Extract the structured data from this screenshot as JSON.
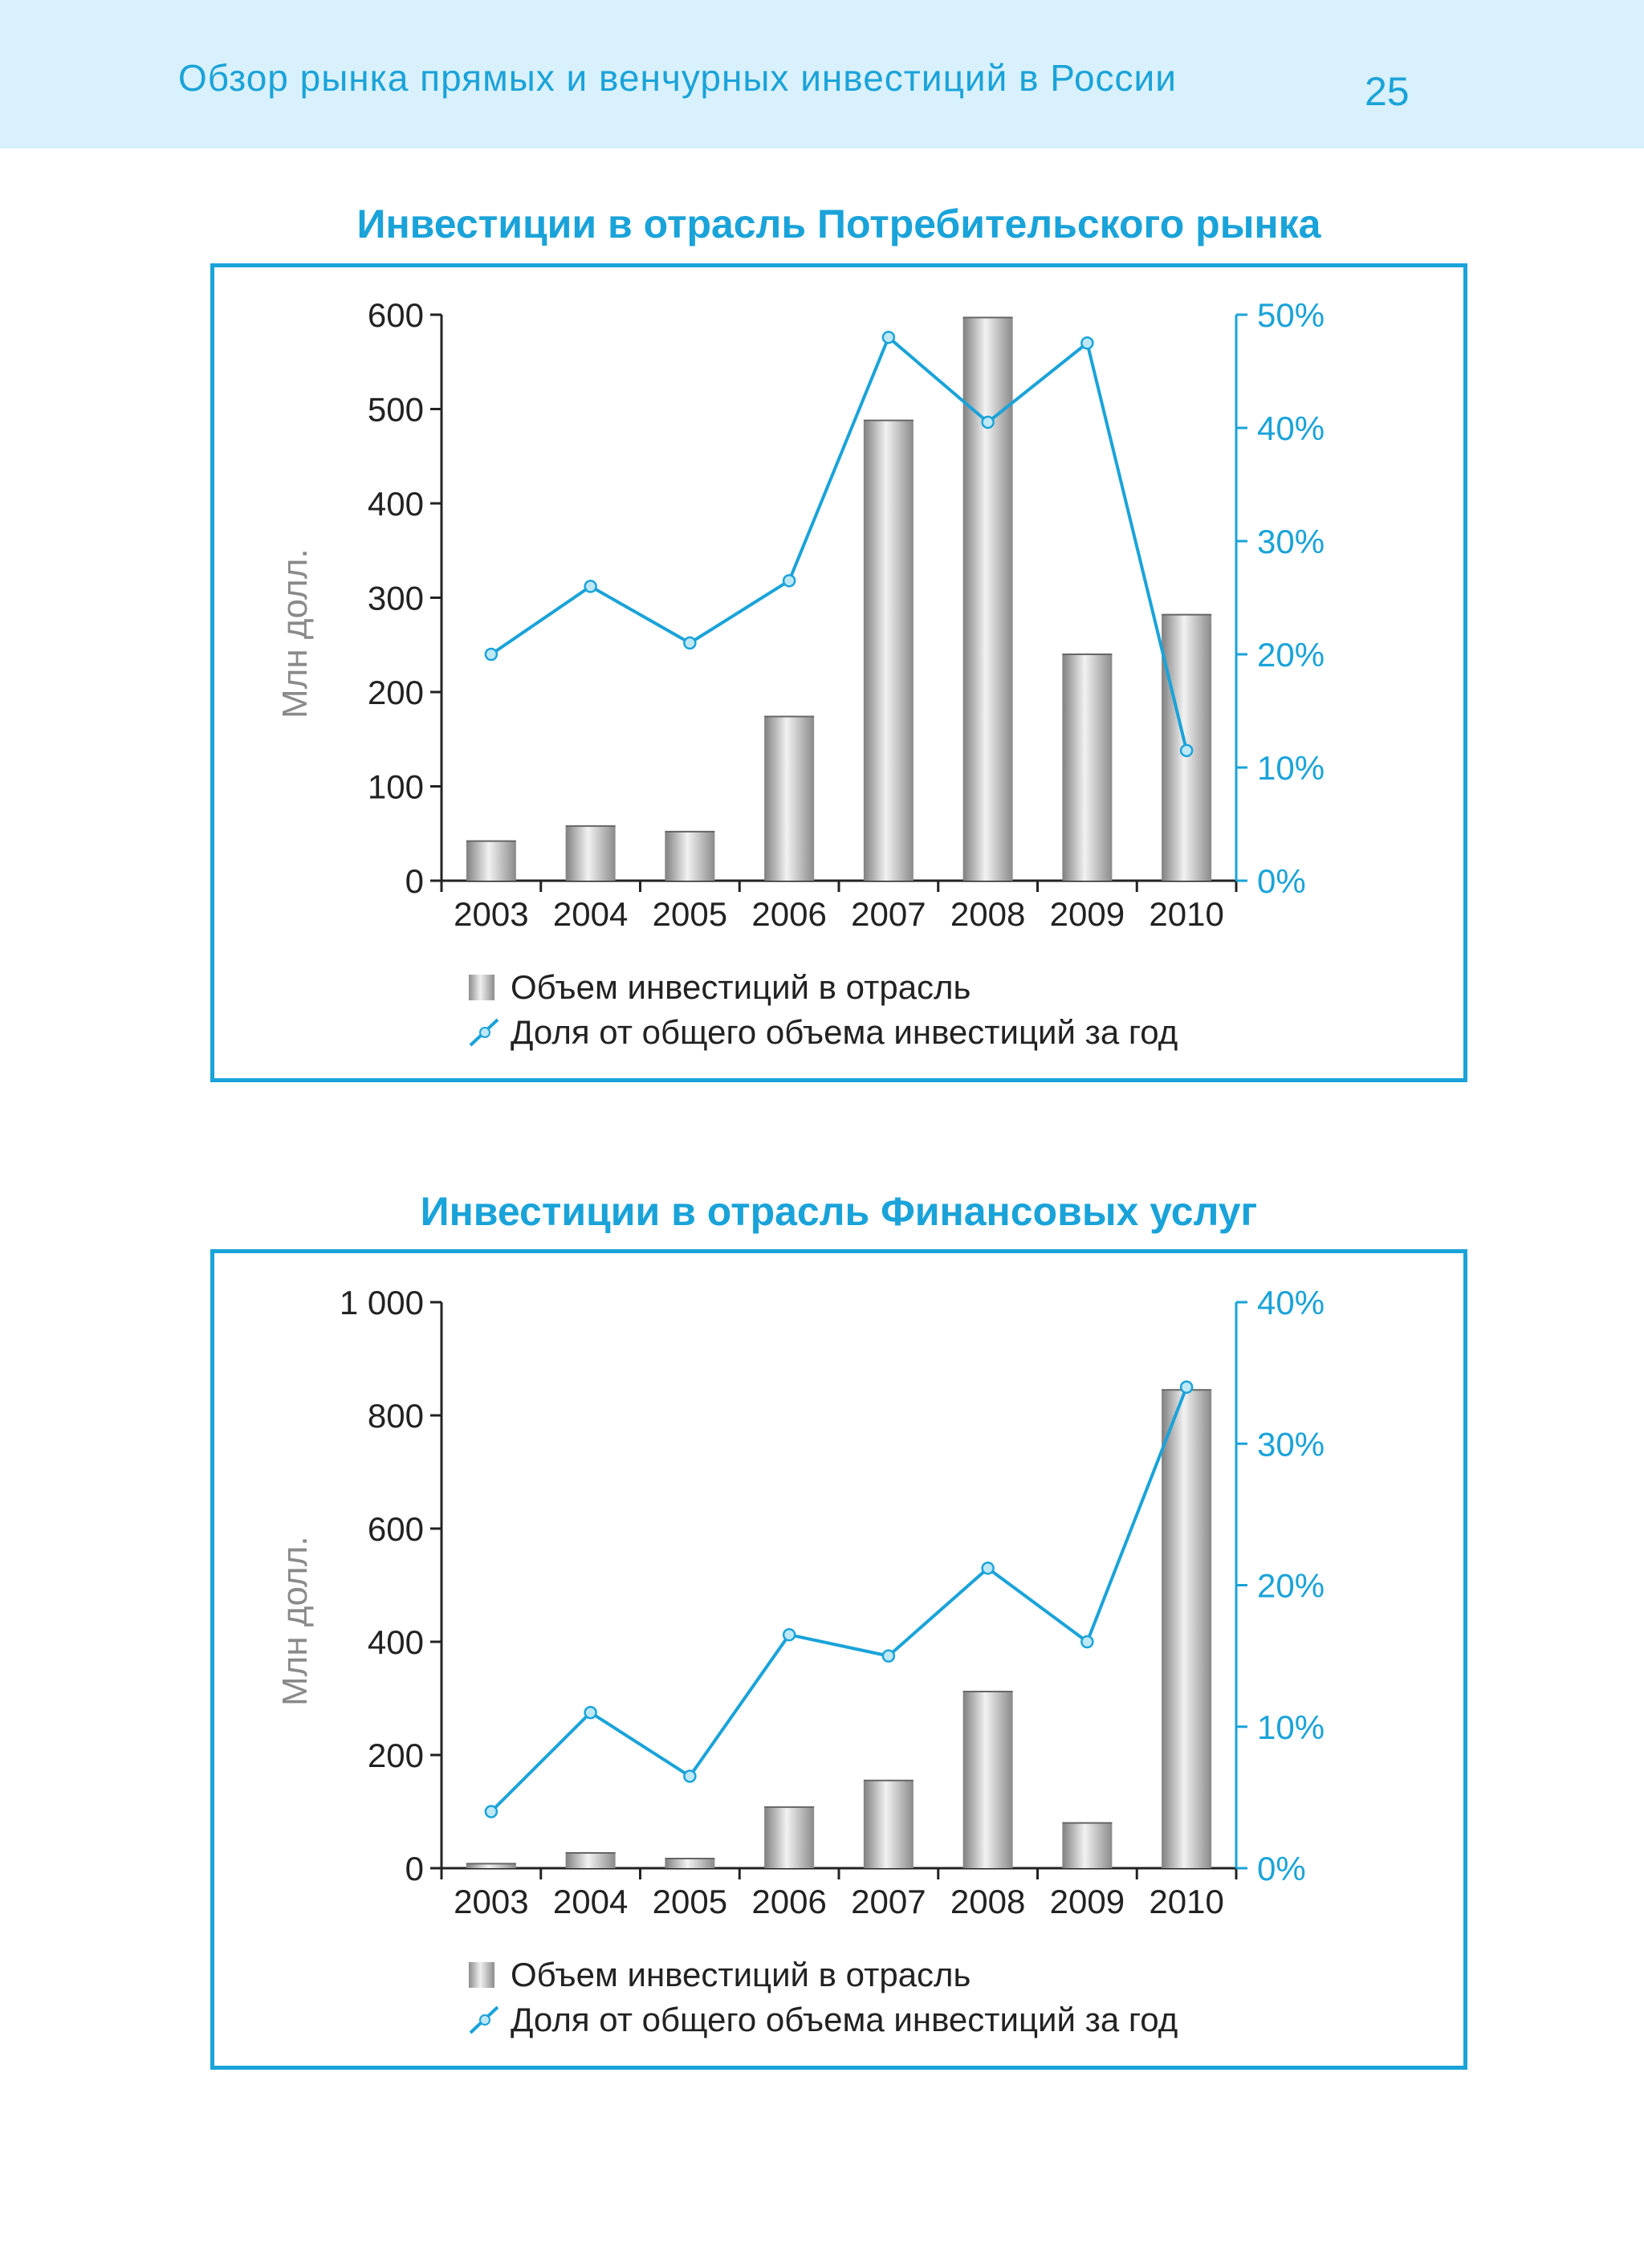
{
  "header": {
    "title": "Обзор рынка прямых и венчурных инвестиций в России",
    "page_number": "25"
  },
  "colors": {
    "accent": "#1aa3d9",
    "bar": "#a9a9a9",
    "header_bg": "#d9f1fc"
  },
  "charts": [
    {
      "title": "Инвестиции в отрасль Потребительского рынка"
    },
    {
      "title": "Инвестиции в отрасль Финансовых услуг"
    }
  ],
  "chart_data": [
    {
      "type": "bar",
      "title": "Инвестиции в отрасль Потребительского рынка",
      "ylabel": "Млн долл.",
      "categories": [
        "2003",
        "2004",
        "2005",
        "2006",
        "2007",
        "2008",
        "2009",
        "2010"
      ],
      "ylim": [
        0,
        600
      ],
      "yticks": [
        "0",
        "100",
        "200",
        "300",
        "400",
        "500",
        "600"
      ],
      "y2lim": [
        0,
        50
      ],
      "y2ticks": [
        "0%",
        "10%",
        "20%",
        "30%",
        "40%",
        "50%"
      ],
      "series": [
        {
          "name": "Объем инвестиций в отрасль",
          "type": "bar",
          "axis": "left",
          "values": [
            42,
            58,
            52,
            174,
            488,
            597,
            240,
            282
          ]
        },
        {
          "name": "Доля от общего объема инвестиций за год",
          "type": "line",
          "axis": "right",
          "values": [
            20,
            26,
            21,
            26.5,
            48,
            40.5,
            47.5,
            11.5
          ]
        }
      ]
    },
    {
      "type": "bar",
      "title": "Инвестиции в отрасль Финансовых услуг",
      "ylabel": "Млн долл.",
      "categories": [
        "2003",
        "2004",
        "2005",
        "2006",
        "2007",
        "2008",
        "2009",
        "2010"
      ],
      "ylim": [
        0,
        1000
      ],
      "yticks": [
        "0",
        "200",
        "400",
        "600",
        "800",
        "1 000"
      ],
      "y2lim": [
        0,
        40
      ],
      "y2ticks": [
        "0%",
        "10%",
        "20%",
        "30%",
        "40%"
      ],
      "series": [
        {
          "name": "Объем инвестиций в отрасль",
          "type": "bar",
          "axis": "left",
          "values": [
            8,
            27,
            17,
            108,
            155,
            312,
            80,
            845
          ]
        },
        {
          "name": "Доля от общего объема инвестиций за год",
          "type": "line",
          "axis": "right",
          "values": [
            4,
            11,
            6.5,
            16.5,
            15,
            21.2,
            16,
            34
          ]
        }
      ]
    }
  ]
}
